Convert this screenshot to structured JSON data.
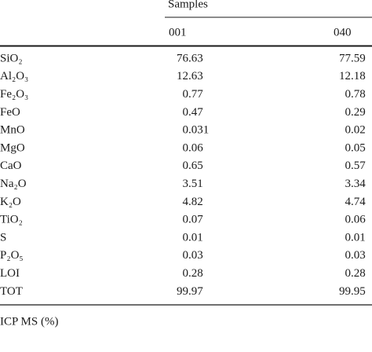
{
  "table": {
    "group_label": "Samples",
    "columns": [
      "001",
      "040"
    ],
    "rows": [
      [
        "SiO₂",
        "76.63",
        "77.59"
      ],
      [
        "Al₂O₃",
        "12.63",
        "12.18"
      ],
      [
        "Fe₂O₃",
        "0.77",
        "0.78"
      ],
      [
        "FeO",
        "0.47",
        "0.29"
      ],
      [
        "MnO",
        "0.031",
        "0.02"
      ],
      [
        "MgO",
        "0.06",
        "0.05"
      ],
      [
        "CaO",
        "0.65",
        "0.57"
      ],
      [
        "Na₂O",
        "3.51",
        "3.34"
      ],
      [
        "K₂O",
        "4.82",
        "4.74"
      ],
      [
        "TiO₂",
        "0.07",
        "0.06"
      ],
      [
        "S",
        "0.01",
        "0.01"
      ],
      [
        "P₂O₅",
        "0.03",
        "0.03"
      ],
      [
        "LOI",
        "0.28",
        "0.28"
      ],
      [
        "TOT",
        "99.97",
        "99.95"
      ]
    ],
    "footnote": "ICP MS (%)"
  }
}
